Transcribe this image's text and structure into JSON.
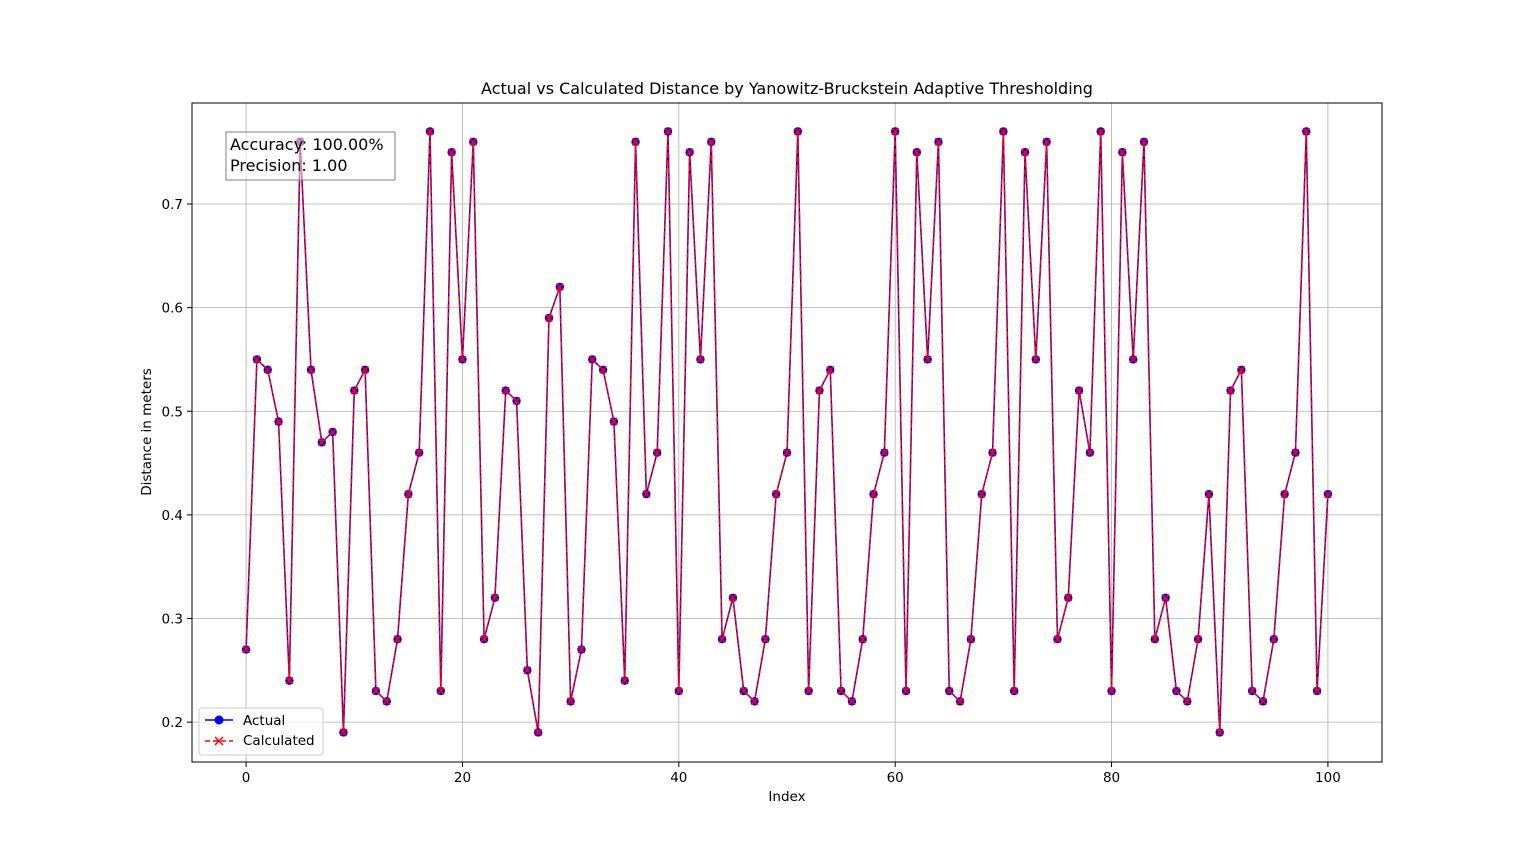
{
  "chart_data": {
    "type": "line",
    "title": "Actual vs Calculated Distance by Yanowitz-Bruckstein Adaptive Thresholding",
    "xlabel": "Index",
    "ylabel": "Distance in meters",
    "xlim": [
      -5,
      105
    ],
    "ylim": [
      0.1615,
      0.7975
    ],
    "xticks": [
      0,
      20,
      40,
      60,
      80,
      100
    ],
    "yticks": [
      0.2,
      0.3,
      0.4,
      0.5,
      0.6,
      0.7
    ],
    "ytick_labels": [
      "0.2",
      "0.3",
      "0.4",
      "0.5",
      "0.6",
      "0.7"
    ],
    "grid": true,
    "legend_position": "lower-left",
    "annotation": {
      "line1": "Accuracy: 100.00%",
      "line2": "Precision: 1.00",
      "position": "upper-left"
    },
    "x": [
      0,
      1,
      2,
      3,
      4,
      5,
      6,
      7,
      8,
      9,
      10,
      11,
      12,
      13,
      14,
      15,
      16,
      17,
      18,
      19,
      20,
      21,
      22,
      23,
      24,
      25,
      26,
      27,
      28,
      29,
      30,
      31,
      32,
      33,
      34,
      35,
      36,
      37,
      38,
      39,
      40,
      41,
      42,
      43,
      44,
      45,
      46,
      47,
      48,
      49,
      50,
      51,
      52,
      53,
      54,
      55,
      56,
      57,
      58,
      59,
      60,
      61,
      62,
      63,
      64,
      65,
      66,
      67,
      68,
      69,
      70,
      71,
      72,
      73,
      74,
      75,
      76,
      77,
      78,
      79,
      80,
      81,
      82,
      83,
      84,
      85,
      86,
      87,
      88,
      89,
      90,
      91,
      92,
      93,
      94,
      95,
      96,
      97,
      98,
      99,
      100
    ],
    "series": [
      {
        "name": "Actual",
        "color": "#0000ff",
        "marker": "circle",
        "linestyle": "solid",
        "values": [
          0.27,
          0.55,
          0.54,
          0.49,
          0.24,
          0.76,
          0.54,
          0.47,
          0.48,
          0.19,
          0.52,
          0.54,
          0.23,
          0.22,
          0.28,
          0.42,
          0.46,
          0.77,
          0.23,
          0.75,
          0.55,
          0.76,
          0.28,
          0.32,
          0.52,
          0.51,
          0.25,
          0.19,
          0.59,
          0.62,
          0.22,
          0.27,
          0.55,
          0.54,
          0.49,
          0.24,
          0.76,
          0.42,
          0.46,
          0.77,
          0.23,
          0.75,
          0.55,
          0.76,
          0.28,
          0.32,
          0.23,
          0.22,
          0.28,
          0.42,
          0.46,
          0.77,
          0.23,
          0.52,
          0.54,
          0.23,
          0.22,
          0.28,
          0.42,
          0.46,
          0.77,
          0.23,
          0.75,
          0.55,
          0.76,
          0.23,
          0.22,
          0.28,
          0.42,
          0.46,
          0.77,
          0.23,
          0.75,
          0.55,
          0.76,
          0.28,
          0.32,
          0.52,
          0.46,
          0.77,
          0.23,
          0.75,
          0.55,
          0.76,
          0.28,
          0.32,
          0.23,
          0.22,
          0.28,
          0.42,
          0.19,
          0.52,
          0.54,
          0.23,
          0.22,
          0.28,
          0.42,
          0.46,
          0.77,
          0.23,
          0.42
        ]
      },
      {
        "name": "Calculated",
        "color": "#ff0000",
        "marker": "x",
        "linestyle": "dashed",
        "values": [
          0.27,
          0.55,
          0.54,
          0.49,
          0.24,
          0.76,
          0.54,
          0.47,
          0.48,
          0.19,
          0.52,
          0.54,
          0.23,
          0.22,
          0.28,
          0.42,
          0.46,
          0.77,
          0.23,
          0.75,
          0.55,
          0.76,
          0.28,
          0.32,
          0.52,
          0.51,
          0.25,
          0.19,
          0.59,
          0.62,
          0.22,
          0.27,
          0.55,
          0.54,
          0.49,
          0.24,
          0.76,
          0.42,
          0.46,
          0.77,
          0.23,
          0.75,
          0.55,
          0.76,
          0.28,
          0.32,
          0.23,
          0.22,
          0.28,
          0.42,
          0.46,
          0.77,
          0.23,
          0.52,
          0.54,
          0.23,
          0.22,
          0.28,
          0.42,
          0.46,
          0.77,
          0.23,
          0.75,
          0.55,
          0.76,
          0.23,
          0.22,
          0.28,
          0.42,
          0.46,
          0.77,
          0.23,
          0.75,
          0.55,
          0.76,
          0.28,
          0.32,
          0.52,
          0.46,
          0.77,
          0.23,
          0.75,
          0.55,
          0.76,
          0.28,
          0.32,
          0.23,
          0.22,
          0.28,
          0.42,
          0.19,
          0.52,
          0.54,
          0.23,
          0.22,
          0.28,
          0.42,
          0.46,
          0.77,
          0.23,
          0.42
        ]
      }
    ]
  }
}
